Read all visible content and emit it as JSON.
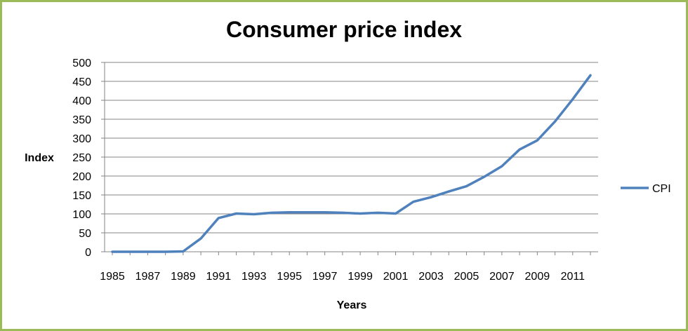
{
  "chart_data": {
    "type": "line",
    "title": "Consumer price index",
    "xlabel": "Years",
    "ylabel": "Index",
    "ylim": [
      0,
      500
    ],
    "yticks": [
      0,
      50,
      100,
      150,
      200,
      250,
      300,
      350,
      400,
      450,
      500
    ],
    "xlim": [
      1985,
      2012
    ],
    "xticks": [
      1985,
      1987,
      1989,
      1991,
      1993,
      1995,
      1997,
      1999,
      2001,
      2003,
      2005,
      2007,
      2009,
      2011
    ],
    "grid": true,
    "legend_position": "right",
    "series": [
      {
        "name": "CPI",
        "color": "#4f81bd",
        "x": [
          1985,
          1986,
          1987,
          1988,
          1989,
          1990,
          1991,
          1992,
          1993,
          1994,
          1995,
          1996,
          1997,
          1998,
          1999,
          2000,
          2001,
          2002,
          2003,
          2004,
          2005,
          2006,
          2007,
          2008,
          2009,
          2010,
          2011,
          2012
        ],
        "values": [
          0,
          0,
          0,
          0,
          1,
          35,
          89,
          101,
          99,
          103,
          104,
          104,
          104,
          103,
          101,
          103,
          101,
          132,
          144,
          159,
          173,
          198,
          226,
          270,
          294,
          344,
          403,
          466
        ]
      }
    ]
  }
}
